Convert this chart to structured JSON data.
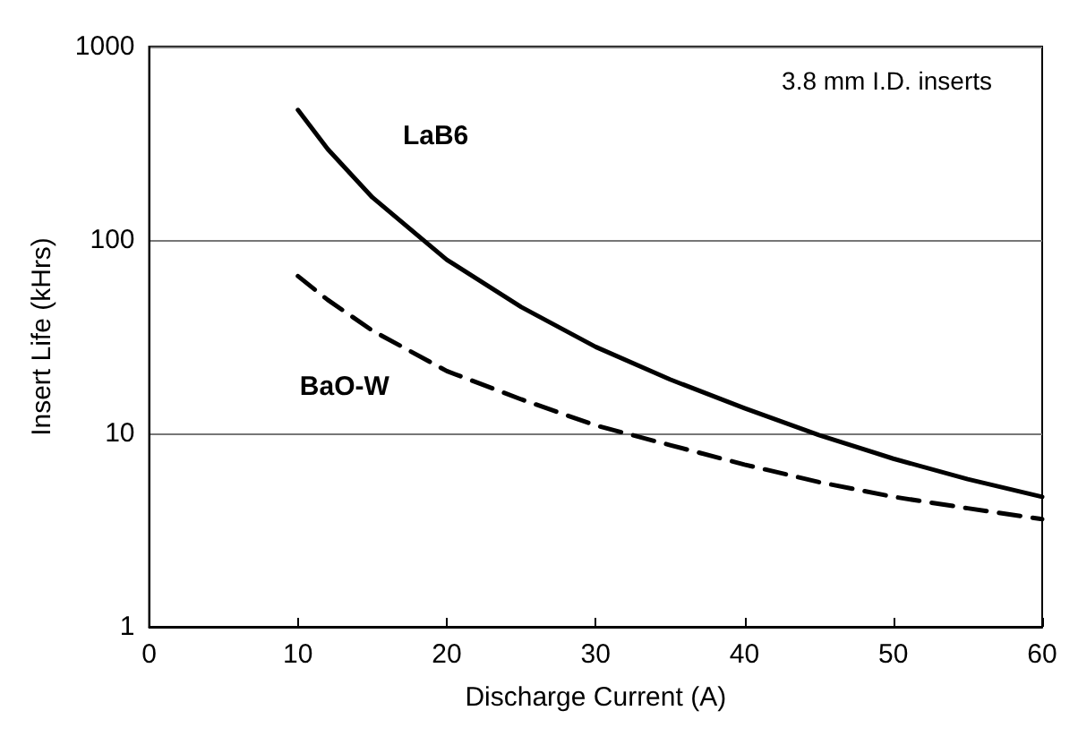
{
  "chart_data": {
    "type": "line",
    "xlabel": "Discharge Current (A)",
    "ylabel": "Insert Life (kHrs)",
    "annotations": [
      "3.8 mm I.D. inserts"
    ],
    "x": [
      10,
      12,
      15,
      20,
      25,
      30,
      35,
      40,
      45,
      50,
      55,
      60
    ],
    "series": [
      {
        "name": "LaB6",
        "color": "#000000",
        "line_style": "solid",
        "values": [
          470,
          295,
          166,
          79,
          45,
          28,
          19,
          13.5,
          9.8,
          7.4,
          5.8,
          4.7
        ]
      },
      {
        "name": "BaO-W",
        "color": "#000000",
        "line_style": "dashed",
        "values": [
          65,
          49,
          34,
          21,
          15,
          11,
          8.7,
          6.9,
          5.6,
          4.7,
          4.1,
          3.6
        ]
      }
    ],
    "xlim": [
      0,
      60
    ],
    "xticks": [
      0,
      10,
      20,
      30,
      40,
      50,
      60
    ],
    "ylim": [
      1,
      1000
    ],
    "yticks": [
      1,
      10,
      100,
      1000
    ],
    "log": "y",
    "grid": "y",
    "legend": false,
    "marker": "none"
  }
}
